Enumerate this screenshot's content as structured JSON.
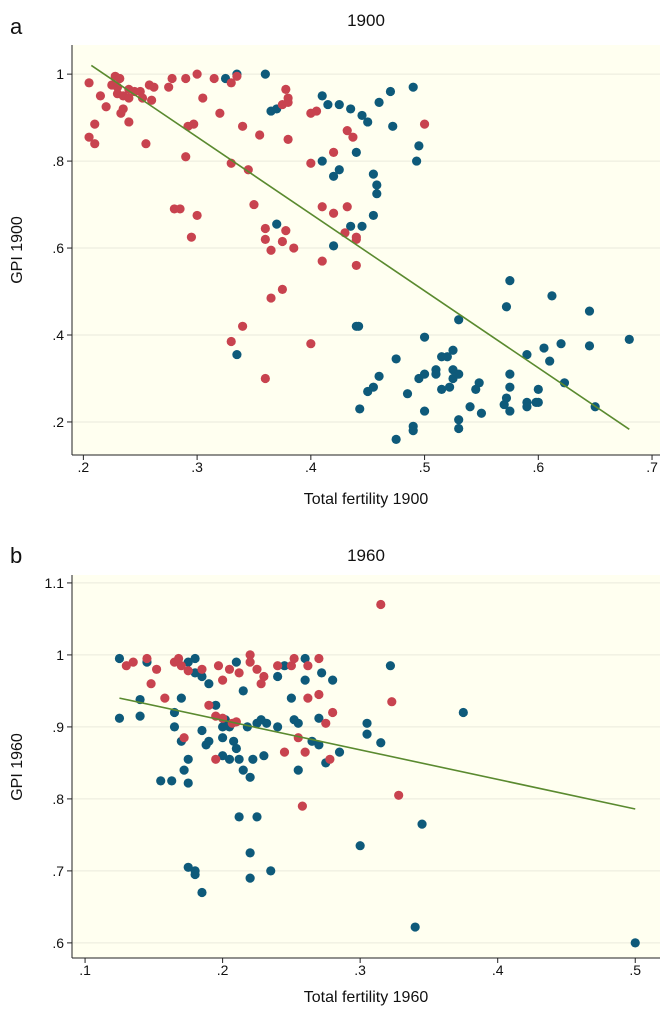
{
  "chart_data": [
    {
      "type": "scatter",
      "panel_label": "a",
      "title": "1900",
      "xlabel": "Total fertility 1900",
      "ylabel": "GPI 1900",
      "xlim": [
        0.19,
        0.707
      ],
      "ylim": [
        0.124,
        1.067
      ],
      "xticks": [
        {
          "value": 0.2,
          "label": ".2"
        },
        {
          "value": 0.3,
          "label": ".3"
        },
        {
          "value": 0.4,
          "label": ".4"
        },
        {
          "value": 0.5,
          "label": ".5"
        },
        {
          "value": 0.6,
          "label": ".6"
        },
        {
          "value": 0.7,
          "label": ".7"
        }
      ],
      "yticks": [
        {
          "value": 0.2,
          "label": ".2"
        },
        {
          "value": 0.4,
          "label": ".4"
        },
        {
          "value": 0.6,
          "label": ".6"
        },
        {
          "value": 0.8,
          "label": ".8"
        },
        1
      ],
      "grid": true,
      "plot_background": "#fffff0",
      "series": [
        {
          "color": "#0e5a7a",
          "x": [
            0.325,
            0.335,
            0.36,
            0.365,
            0.37,
            0.41,
            0.415,
            0.425,
            0.435,
            0.445,
            0.45,
            0.46,
            0.47,
            0.49,
            0.472,
            0.495,
            0.493,
            0.41,
            0.42,
            0.425,
            0.44,
            0.455,
            0.458,
            0.458,
            0.455,
            0.445,
            0.435,
            0.42,
            0.37,
            0.44,
            0.442,
            0.335,
            0.53,
            0.575,
            0.572,
            0.612,
            0.645,
            0.62,
            0.61,
            0.605,
            0.645,
            0.68,
            0.59,
            0.6,
            0.623,
            0.65,
            0.475,
            0.5,
            0.46,
            0.455,
            0.45,
            0.443,
            0.475,
            0.49,
            0.49,
            0.485,
            0.495,
            0.5,
            0.5,
            0.515,
            0.52,
            0.51,
            0.525,
            0.525,
            0.525,
            0.53,
            0.522,
            0.53,
            0.53,
            0.54,
            0.545,
            0.548,
            0.55,
            0.57,
            0.572,
            0.575,
            0.575,
            0.575,
            0.59,
            0.59,
            0.598,
            0.6,
            0.51,
            0.515
          ],
          "values": [
            0.99,
            1.0,
            1.0,
            0.915,
            0.92,
            0.95,
            0.93,
            0.93,
            0.92,
            0.905,
            0.89,
            0.935,
            0.96,
            0.97,
            0.88,
            0.835,
            0.8,
            0.8,
            0.765,
            0.78,
            0.82,
            0.77,
            0.745,
            0.725,
            0.675,
            0.65,
            0.65,
            0.605,
            0.655,
            0.42,
            0.42,
            0.355,
            0.435,
            0.525,
            0.465,
            0.49,
            0.455,
            0.38,
            0.34,
            0.37,
            0.375,
            0.39,
            0.355,
            0.275,
            0.29,
            0.235,
            0.345,
            0.395,
            0.305,
            0.28,
            0.27,
            0.23,
            0.16,
            0.18,
            0.19,
            0.265,
            0.3,
            0.31,
            0.225,
            0.35,
            0.35,
            0.32,
            0.32,
            0.3,
            0.365,
            0.31,
            0.28,
            0.205,
            0.185,
            0.235,
            0.275,
            0.29,
            0.22,
            0.24,
            0.255,
            0.28,
            0.31,
            0.225,
            0.245,
            0.235,
            0.245,
            0.245,
            0.31,
            0.275
          ]
        },
        {
          "color": "#c8434f",
          "x": [
            0.205,
            0.205,
            0.21,
            0.21,
            0.215,
            0.22,
            0.225,
            0.228,
            0.23,
            0.23,
            0.232,
            0.235,
            0.235,
            0.233,
            0.24,
            0.24,
            0.24,
            0.245,
            0.25,
            0.252,
            0.255,
            0.258,
            0.26,
            0.262,
            0.275,
            0.278,
            0.29,
            0.3,
            0.305,
            0.315,
            0.32,
            0.33,
            0.335,
            0.34,
            0.29,
            0.292,
            0.297,
            0.33,
            0.345,
            0.355,
            0.28,
            0.285,
            0.3,
            0.295,
            0.35,
            0.36,
            0.36,
            0.365,
            0.375,
            0.378,
            0.385,
            0.375,
            0.378,
            0.38,
            0.38,
            0.38,
            0.4,
            0.4,
            0.405,
            0.41,
            0.41,
            0.42,
            0.42,
            0.43,
            0.432,
            0.44,
            0.44,
            0.44,
            0.432,
            0.437,
            0.5,
            0.365,
            0.375,
            0.34,
            0.33,
            0.36,
            0.4
          ],
          "values": [
            0.98,
            0.855,
            0.84,
            0.885,
            0.95,
            0.925,
            0.975,
            0.995,
            0.97,
            0.955,
            0.99,
            0.95,
            0.92,
            0.91,
            0.965,
            0.89,
            0.945,
            0.96,
            0.96,
            0.945,
            0.84,
            0.975,
            0.94,
            0.97,
            0.97,
            0.99,
            0.99,
            1.0,
            0.945,
            0.99,
            0.91,
            0.98,
            0.995,
            0.88,
            0.81,
            0.88,
            0.885,
            0.795,
            0.78,
            0.86,
            0.69,
            0.69,
            0.675,
            0.625,
            0.7,
            0.645,
            0.62,
            0.595,
            0.615,
            0.64,
            0.6,
            0.93,
            0.965,
            0.945,
            0.935,
            0.85,
            0.795,
            0.91,
            0.915,
            0.57,
            0.695,
            0.68,
            0.82,
            0.635,
            0.695,
            0.625,
            0.56,
            0.62,
            0.87,
            0.855,
            0.885,
            0.485,
            0.505,
            0.42,
            0.385,
            0.3,
            0.38
          ]
        }
      ],
      "fit_line": {
        "color": "#5a8a2f",
        "x": [
          0.207,
          0.68
        ],
        "y": [
          1.02,
          0.183
        ]
      }
    },
    {
      "type": "scatter",
      "panel_label": "b",
      "title": "1960",
      "xlabel": "Total fertility 1960",
      "ylabel": "GPI 1960",
      "xlim": [
        0.0905,
        0.518
      ],
      "ylim": [
        0.579,
        1.111
      ],
      "xticks": [
        {
          "value": 0.1,
          "label": ".1"
        },
        {
          "value": 0.2,
          "label": ".2"
        },
        {
          "value": 0.3,
          "label": ".3"
        },
        {
          "value": 0.4,
          "label": ".4"
        },
        {
          "value": 0.5,
          "label": ".5"
        }
      ],
      "yticks": [
        {
          "value": 0.6,
          "label": ".6"
        },
        {
          "value": 0.7,
          "label": ".7"
        },
        {
          "value": 0.8,
          "label": ".8"
        },
        {
          "value": 0.9,
          "label": ".9"
        },
        1,
        1.1
      ],
      "grid": true,
      "plot_background": "#fffff0",
      "series": [
        {
          "color": "#0e5a7a",
          "x": [
            0.125,
            0.125,
            0.145,
            0.14,
            0.14,
            0.155,
            0.163,
            0.165,
            0.165,
            0.17,
            0.17,
            0.172,
            0.175,
            0.175,
            0.175,
            0.18,
            0.18,
            0.185,
            0.185,
            0.188,
            0.19,
            0.19,
            0.195,
            0.2,
            0.2,
            0.2,
            0.202,
            0.205,
            0.205,
            0.208,
            0.21,
            0.21,
            0.212,
            0.212,
            0.215,
            0.215,
            0.218,
            0.22,
            0.22,
            0.22,
            0.222,
            0.225,
            0.225,
            0.228,
            0.23,
            0.232,
            0.235,
            0.24,
            0.24,
            0.245,
            0.25,
            0.252,
            0.255,
            0.255,
            0.26,
            0.26,
            0.265,
            0.27,
            0.27,
            0.272,
            0.275,
            0.28,
            0.285,
            0.175,
            0.185,
            0.18,
            0.18,
            0.3,
            0.305,
            0.305,
            0.315,
            0.322,
            0.345,
            0.34,
            0.375,
            0.5
          ],
          "values": [
            0.995,
            0.912,
            0.99,
            0.938,
            0.915,
            0.825,
            0.825,
            0.92,
            0.9,
            0.94,
            0.88,
            0.84,
            0.855,
            0.822,
            0.99,
            0.995,
            0.975,
            0.97,
            0.895,
            0.875,
            0.88,
            0.96,
            0.93,
            0.9,
            0.885,
            0.86,
            0.91,
            0.855,
            0.9,
            0.88,
            0.87,
            0.99,
            0.855,
            0.775,
            0.84,
            0.95,
            0.9,
            0.725,
            0.69,
            0.83,
            0.855,
            0.905,
            0.775,
            0.91,
            0.86,
            0.905,
            0.7,
            0.97,
            0.9,
            0.985,
            0.94,
            0.91,
            0.84,
            0.905,
            0.965,
            0.995,
            0.88,
            0.875,
            0.912,
            0.975,
            0.85,
            0.965,
            0.865,
            0.705,
            0.67,
            0.7,
            0.695,
            0.735,
            0.905,
            0.89,
            0.878,
            0.985,
            0.765,
            0.622,
            0.92,
            0.6
          ]
        },
        {
          "color": "#c8434f",
          "x": [
            0.13,
            0.135,
            0.145,
            0.148,
            0.152,
            0.158,
            0.165,
            0.168,
            0.17,
            0.172,
            0.175,
            0.185,
            0.19,
            0.195,
            0.195,
            0.197,
            0.2,
            0.205,
            0.207,
            0.212,
            0.22,
            0.22,
            0.225,
            0.228,
            0.23,
            0.24,
            0.245,
            0.25,
            0.252,
            0.255,
            0.258,
            0.26,
            0.262,
            0.262,
            0.27,
            0.27,
            0.275,
            0.278,
            0.28,
            0.315,
            0.323,
            0.328,
            0.2,
            0.21
          ],
          "values": [
            0.985,
            0.99,
            0.995,
            0.96,
            0.98,
            0.94,
            0.99,
            0.995,
            0.985,
            0.885,
            0.978,
            0.98,
            0.93,
            0.915,
            0.855,
            0.985,
            0.965,
            0.98,
            0.905,
            0.975,
            1.0,
            0.99,
            0.98,
            0.96,
            0.97,
            0.985,
            0.865,
            0.985,
            0.995,
            0.885,
            0.79,
            0.865,
            0.94,
            0.985,
            0.945,
            0.995,
            0.905,
            0.855,
            0.92,
            1.07,
            0.935,
            0.805,
            0.912,
            0.907
          ]
        }
      ],
      "fit_line": {
        "color": "#5a8a2f",
        "x": [
          0.125,
          0.5
        ],
        "y": [
          0.94,
          0.786
        ]
      }
    }
  ]
}
